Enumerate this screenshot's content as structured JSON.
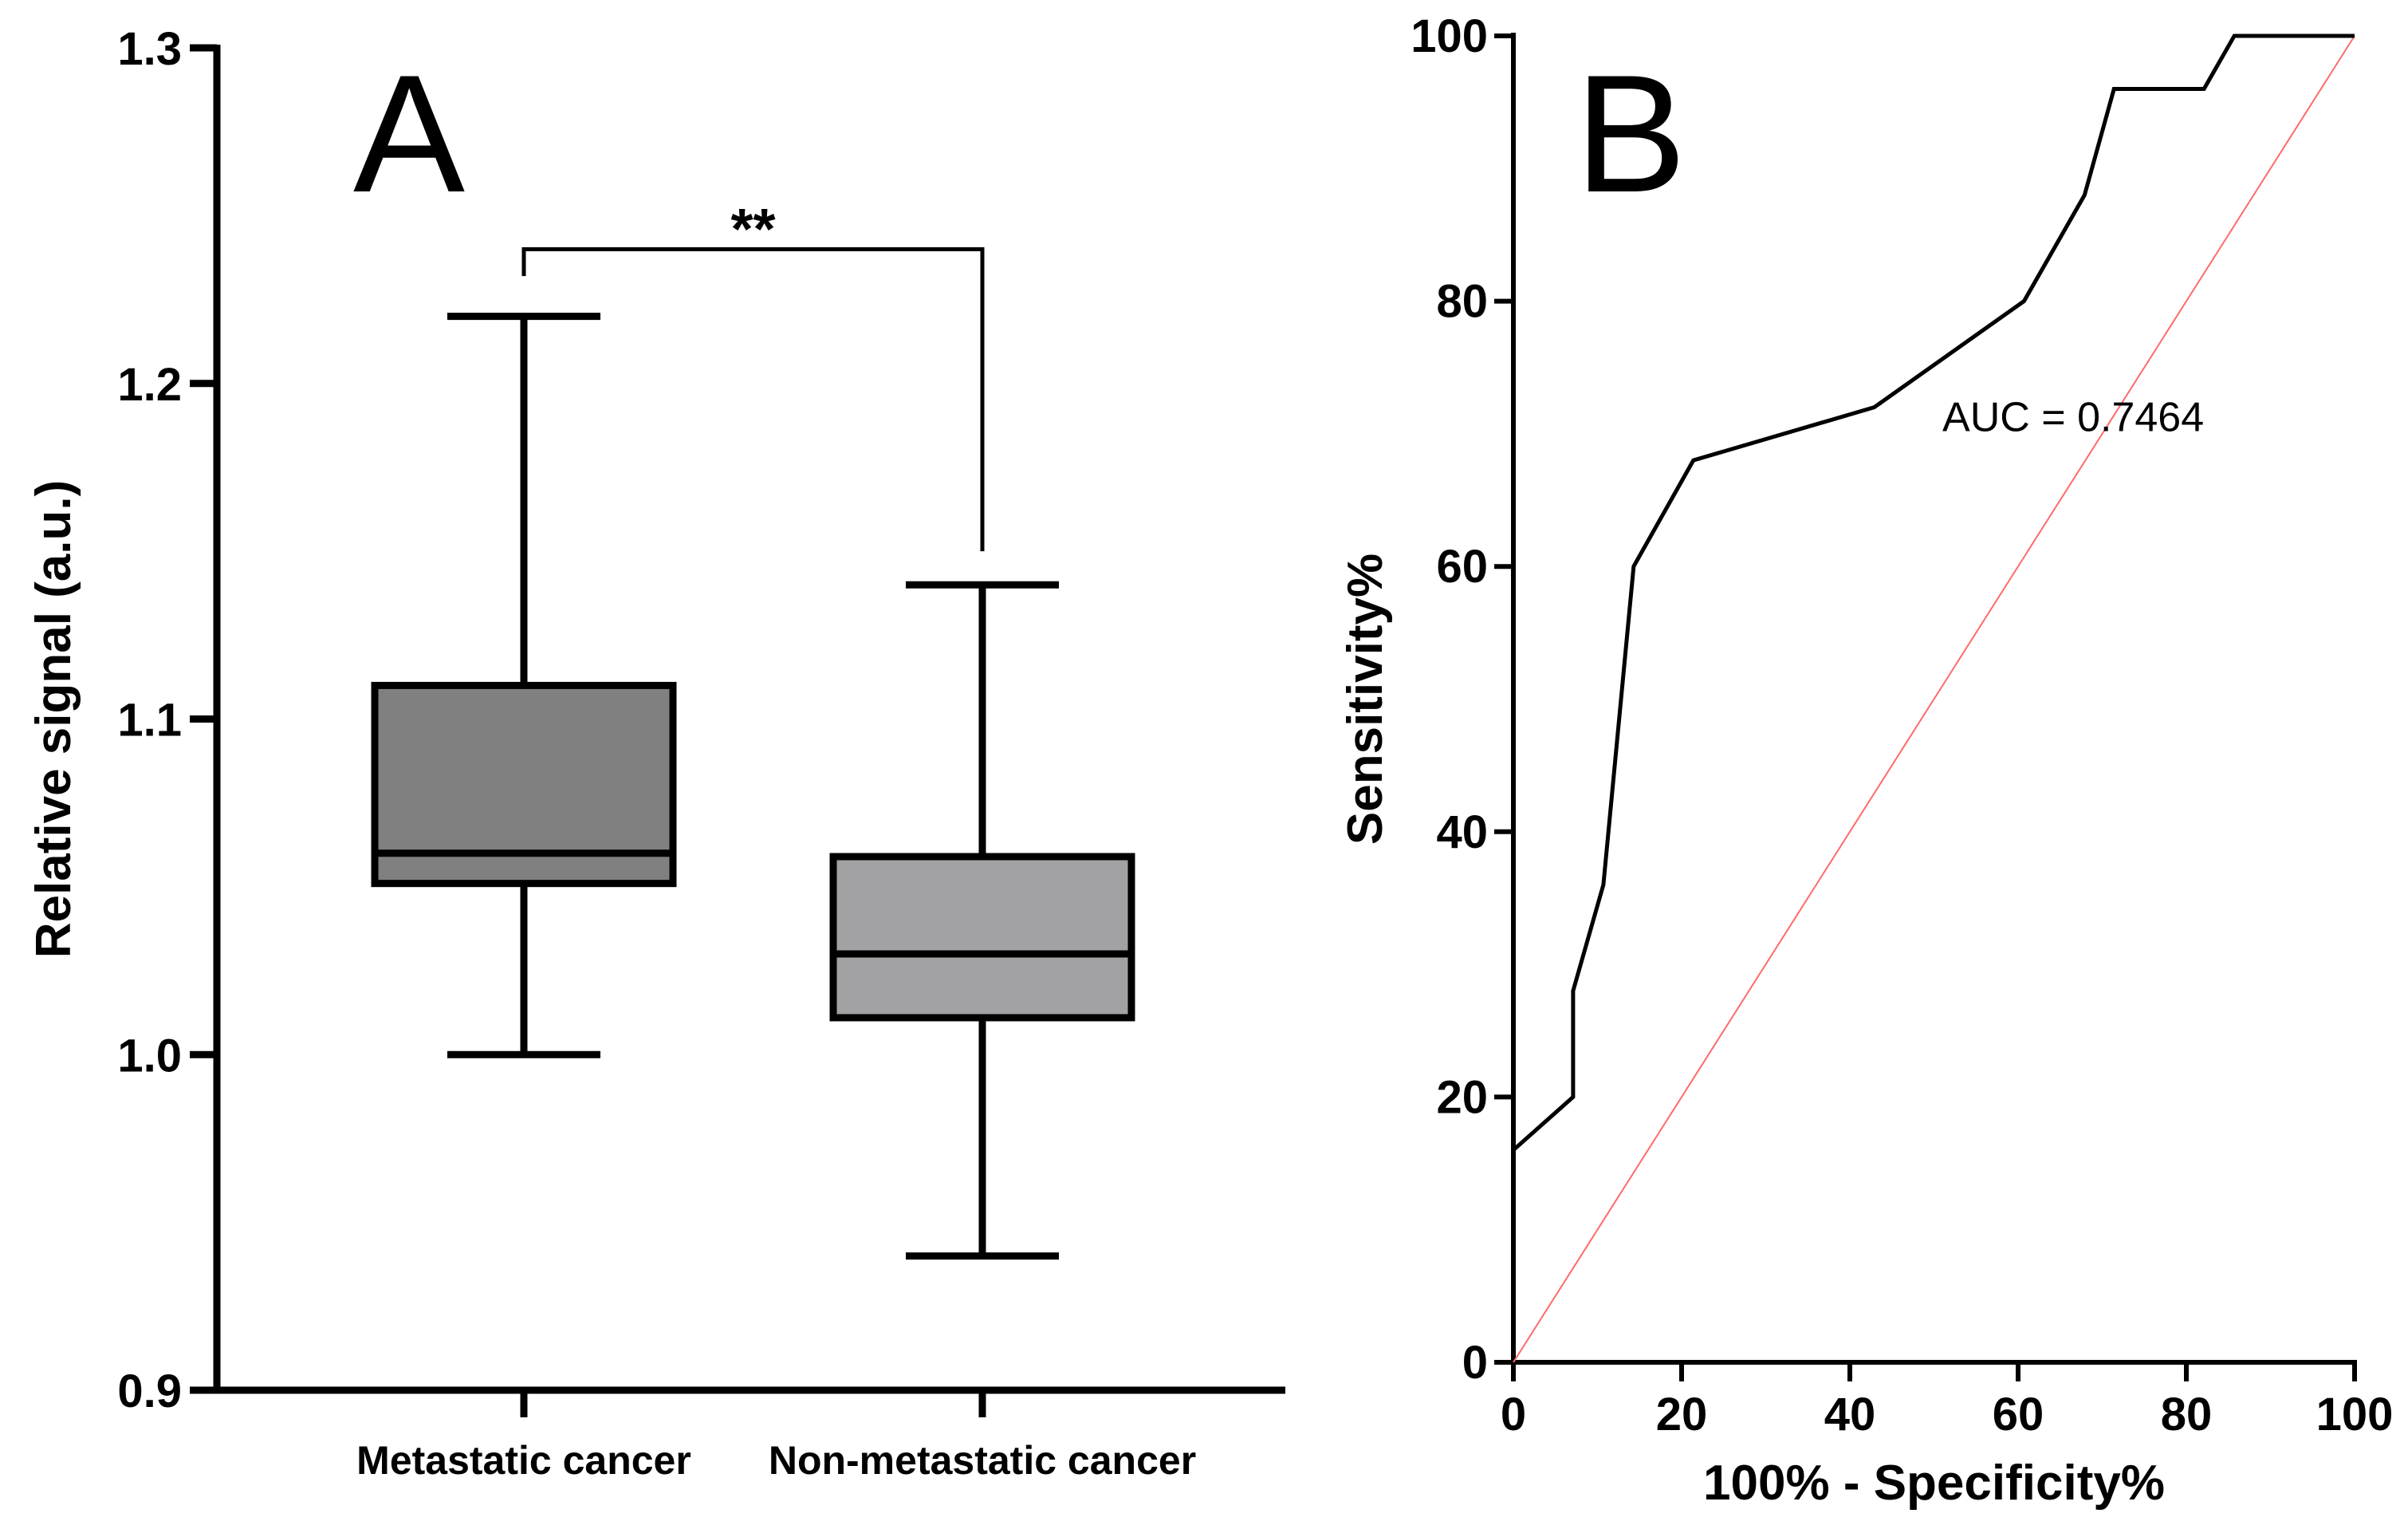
{
  "chart_data": [
    {
      "type": "box",
      "panel_label": "A",
      "ylabel": "Relative signal (a.u.)",
      "xlabel": "",
      "ylim": [
        0.9,
        1.3
      ],
      "yticks": [
        0.9,
        1.0,
        1.1,
        1.2,
        1.3
      ],
      "ytick_labels": [
        "0.9",
        "1.0",
        "1.1",
        "1.2",
        "1.3"
      ],
      "categories": [
        "Metastatic cancer",
        "Non-metastatic cancer"
      ],
      "boxes": [
        {
          "name": "Metastatic cancer",
          "min": 1.0,
          "q1": 1.051,
          "median": 1.06,
          "q3": 1.11,
          "max": 1.22,
          "color": "#808080"
        },
        {
          "name": "Non-metastatic cancer",
          "min": 0.94,
          "q1": 1.011,
          "median": 1.03,
          "q3": 1.059,
          "max": 1.14,
          "color": "#a2a2a5"
        }
      ],
      "significance": {
        "label": "**",
        "y": 1.24,
        "left_end": 1.232,
        "right_end": 1.15
      }
    },
    {
      "type": "line",
      "panel_label": "B",
      "xlabel": "100% - Specificity%",
      "ylabel": "Sensitivity%",
      "xlim": [
        0,
        100
      ],
      "ylim": [
        0,
        100
      ],
      "xticks": [
        0,
        20,
        40,
        60,
        80,
        100
      ],
      "yticks": [
        0,
        20,
        40,
        60,
        80,
        100
      ],
      "xtick_labels": [
        "0",
        "20",
        "40",
        "60",
        "80",
        "100"
      ],
      "ytick_labels": [
        "0",
        "20",
        "40",
        "60",
        "80",
        "100"
      ],
      "series": [
        {
          "name": "ROC curve",
          "color": "#000000",
          "x": [
            0,
            7.1,
            7.1,
            10.7,
            14.3,
            21.4,
            42.9,
            60.7,
            67.9,
            71.4,
            82.1,
            85.7,
            100
          ],
          "y": [
            16,
            20,
            28,
            36,
            60,
            68,
            72,
            80,
            88,
            96,
            96,
            100,
            100
          ]
        },
        {
          "name": "Reference line",
          "color": "#ff6a6a",
          "x": [
            0,
            100
          ],
          "y": [
            0,
            100
          ]
        }
      ],
      "annotations": [
        {
          "text": "AUC = 0.7464",
          "x": 51,
          "y": 72
        }
      ]
    }
  ]
}
